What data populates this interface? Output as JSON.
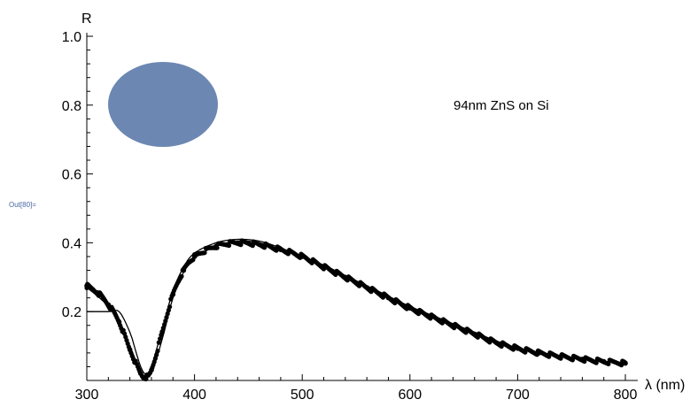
{
  "out_label": "Out[80]=",
  "chart_data": {
    "type": "line",
    "title": "",
    "annotation": "94nm ZnS on Si",
    "xlabel": "λ (nm)",
    "ylabel": "R",
    "xlim": [
      300,
      800
    ],
    "ylim": [
      0,
      1.0
    ],
    "x_ticks": [
      300,
      400,
      500,
      600,
      700,
      800
    ],
    "x_tick_labels": [
      "300",
      "400",
      "500",
      "600",
      "700",
      "800"
    ],
    "y_ticks": [
      0.2,
      0.4,
      0.6,
      0.8,
      1.0
    ],
    "y_tick_labels": [
      "0.2",
      "0.4",
      "0.6",
      "0.8",
      "1.0"
    ],
    "grid": false,
    "colors": {
      "axis": "#000000",
      "data": "#000000",
      "blob": "#6c87b2"
    },
    "series": [
      {
        "style": "dots",
        "x": [
          300,
          310,
          320,
          330,
          340,
          350,
          355,
          360,
          370,
          380,
          390,
          400,
          420,
          440,
          460,
          480,
          500,
          520,
          540,
          560,
          580,
          600,
          620,
          640,
          660,
          680,
          700,
          720,
          740,
          760,
          780,
          800
        ],
        "values": [
          0.275,
          0.255,
          0.22,
          0.17,
          0.09,
          0.02,
          0.01,
          0.03,
          0.14,
          0.25,
          0.32,
          0.36,
          0.39,
          0.4,
          0.395,
          0.38,
          0.36,
          0.33,
          0.3,
          0.27,
          0.24,
          0.21,
          0.185,
          0.16,
          0.135,
          0.11,
          0.093,
          0.08,
          0.07,
          0.062,
          0.055,
          0.05
        ]
      },
      {
        "style": "thin-line",
        "x": [
          300,
          310,
          320,
          330,
          340,
          350,
          355,
          360,
          370,
          380,
          390,
          400,
          420,
          440,
          460,
          480,
          500,
          520,
          540,
          560,
          580,
          600,
          620,
          640,
          660,
          680,
          700,
          720,
          740,
          760,
          780,
          800
        ],
        "values": [
          0.27,
          0.245,
          0.215,
          0.175,
          0.1,
          0.025,
          0.015,
          0.04,
          0.15,
          0.26,
          0.33,
          0.37,
          0.4,
          0.41,
          0.405,
          0.385,
          0.36,
          0.335,
          0.305,
          0.275,
          0.245,
          0.215,
          0.19,
          0.165,
          0.14,
          0.115,
          0.095,
          0.082,
          0.072,
          0.063,
          0.056,
          0.05
        ]
      },
      {
        "style": "thin-line",
        "x": [
          300,
          310,
          320,
          330,
          340,
          345,
          350,
          355,
          360,
          370,
          380,
          390,
          400,
          420,
          440,
          460,
          480,
          500,
          520,
          540,
          560,
          580,
          600,
          620,
          640,
          660,
          680,
          700,
          720,
          740,
          760,
          780,
          800
        ],
        "values": [
          0.2,
          0.2,
          0.2,
          0.2,
          0.14,
          0.09,
          0.04,
          0.015,
          0.02,
          0.12,
          0.24,
          0.315,
          0.355,
          0.39,
          0.405,
          0.4,
          0.38,
          0.36,
          0.332,
          0.302,
          0.272,
          0.242,
          0.212,
          0.187,
          0.162,
          0.137,
          0.112,
          0.093,
          0.08,
          0.07,
          0.062,
          0.055,
          0.05
        ]
      }
    ]
  }
}
